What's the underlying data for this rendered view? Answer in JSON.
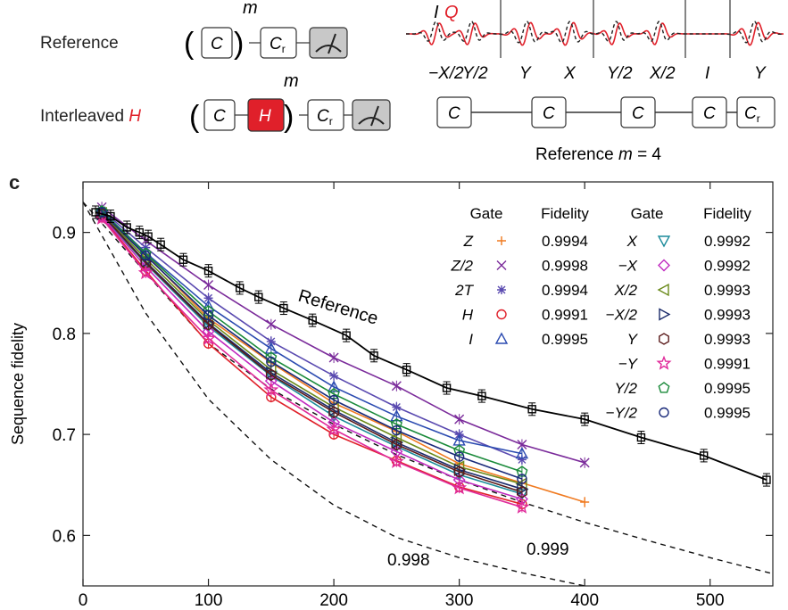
{
  "schematic": {
    "reference_label": "Reference",
    "interleaved_label": "Interleaved",
    "interleaved_gate": "H",
    "repeat_symbol": "m",
    "block_c": "C",
    "block_h": "H",
    "block_cr": "C",
    "block_cr_sub": "r",
    "iq_i": "I",
    "iq_q": "Q",
    "pulse_labels": [
      "−X/2",
      "Y/2",
      "Y",
      "X",
      "Y/2",
      "X/2",
      "I",
      "Y"
    ],
    "sequence_blocks": [
      "C",
      "C",
      "C",
      "C",
      "C"
    ],
    "sequence_caption_prefix": "Reference",
    "sequence_caption_var": "m",
    "sequence_caption_value": "= 4"
  },
  "panel_letter": "c",
  "chart_data": {
    "type": "line",
    "ylabel": "Sequence fidelity",
    "xlabel": "",
    "xlim": [
      0,
      550
    ],
    "ylim": [
      0.55,
      0.95
    ],
    "xticks": [
      0,
      100,
      200,
      300,
      400,
      500
    ],
    "yticks": [
      0.6,
      0.7,
      0.8,
      0.9
    ],
    "legend_placement": "top-right",
    "legend_headers": [
      "Gate",
      "Fidelity",
      "Gate",
      "Fidelity"
    ],
    "reference": {
      "name": "Reference",
      "color": "#000000",
      "x": [
        10,
        22,
        35,
        45,
        52,
        62,
        80,
        100,
        125,
        140,
        160,
        183,
        210,
        232,
        258,
        290,
        318,
        358,
        400,
        445,
        495,
        545
      ],
      "y": [
        0.92,
        0.916,
        0.905,
        0.9,
        0.896,
        0.888,
        0.873,
        0.862,
        0.845,
        0.836,
        0.825,
        0.813,
        0.798,
        0.778,
        0.764,
        0.746,
        0.738,
        0.725,
        0.715,
        0.697,
        0.679,
        0.655
      ]
    },
    "series": [
      {
        "name": "Z",
        "fidelity": "0.9994",
        "marker": "plus",
        "color": "#f07a20",
        "x": [
          15,
          50,
          100,
          150,
          200,
          250,
          300,
          350,
          400
        ],
        "y": [
          0.918,
          0.878,
          0.815,
          0.771,
          0.731,
          0.703,
          0.671,
          0.652,
          0.633
        ]
      },
      {
        "name": "Z/2",
        "fidelity": "0.9998",
        "marker": "x",
        "color": "#7a2a9a",
        "x": [
          15,
          50,
          100,
          150,
          200,
          250,
          300,
          350,
          400
        ],
        "y": [
          0.925,
          0.892,
          0.848,
          0.809,
          0.776,
          0.748,
          0.715,
          0.69,
          0.672
        ]
      },
      {
        "name": "2T",
        "fidelity": "0.9994",
        "marker": "star",
        "color": "#5a4ab0",
        "x": [
          15,
          50,
          100,
          150,
          200,
          250,
          300,
          350
        ],
        "y": [
          0.922,
          0.885,
          0.835,
          0.792,
          0.758,
          0.727,
          0.7,
          0.675
        ]
      },
      {
        "name": "H",
        "fidelity": "0.9991",
        "marker": "circle",
        "color": "#e0202a",
        "x": [
          15,
          50,
          100,
          150,
          200,
          250,
          300,
          350
        ],
        "y": [
          0.915,
          0.862,
          0.79,
          0.737,
          0.7,
          0.674,
          0.648,
          0.631
        ]
      },
      {
        "name": "I",
        "fidelity": "0.9995",
        "marker": "triangle-up",
        "color": "#2a4ab0",
        "x": [
          15,
          50,
          100,
          150,
          200,
          250,
          300,
          350
        ],
        "y": [
          0.921,
          0.88,
          0.827,
          0.785,
          0.747,
          0.718,
          0.694,
          0.681
        ]
      }
    ],
    "series_right": [
      {
        "name": "X",
        "fidelity": "0.9992",
        "marker": "triangle-down",
        "color": "#1a8a9a",
        "x": [
          15,
          50,
          100,
          150,
          200,
          250,
          300,
          350
        ],
        "y": [
          0.917,
          0.869,
          0.807,
          0.758,
          0.718,
          0.688,
          0.66,
          0.641
        ]
      },
      {
        "name": "−X",
        "fidelity": "0.9992",
        "marker": "diamond",
        "color": "#c02ac0",
        "x": [
          15,
          50,
          100,
          150,
          200,
          250,
          300,
          350
        ],
        "y": [
          0.916,
          0.866,
          0.802,
          0.753,
          0.712,
          0.683,
          0.655,
          0.636
        ]
      },
      {
        "name": "X/2",
        "fidelity": "0.9993",
        "marker": "triangle-left",
        "color": "#6a8a1a",
        "x": [
          15,
          50,
          100,
          150,
          200,
          250,
          300,
          350
        ],
        "y": [
          0.919,
          0.874,
          0.813,
          0.764,
          0.727,
          0.697,
          0.668,
          0.651
        ]
      },
      {
        "name": "−X/2",
        "fidelity": "0.9993",
        "marker": "triangle-right",
        "color": "#1a2a6a",
        "x": [
          15,
          50,
          100,
          150,
          200,
          250,
          300,
          350
        ],
        "y": [
          0.918,
          0.871,
          0.81,
          0.761,
          0.724,
          0.692,
          0.665,
          0.646
        ]
      },
      {
        "name": "Y",
        "fidelity": "0.9993",
        "marker": "hexagon",
        "color": "#5a1a1a",
        "x": [
          15,
          50,
          100,
          150,
          200,
          250,
          300,
          350
        ],
        "y": [
          0.918,
          0.87,
          0.809,
          0.759,
          0.722,
          0.69,
          0.663,
          0.643
        ]
      },
      {
        "name": "−Y",
        "fidelity": "0.9991",
        "marker": "star5",
        "color": "#e02a9a",
        "x": [
          15,
          50,
          100,
          150,
          200,
          250,
          300,
          350
        ],
        "y": [
          0.914,
          0.86,
          0.795,
          0.744,
          0.705,
          0.673,
          0.647,
          0.628
        ]
      },
      {
        "name": "Y/2",
        "fidelity": "0.9995",
        "marker": "pentagon",
        "color": "#1a8a3a",
        "x": [
          15,
          50,
          100,
          150,
          200,
          250,
          300,
          350
        ],
        "y": [
          0.921,
          0.879,
          0.822,
          0.776,
          0.74,
          0.71,
          0.684,
          0.663
        ]
      },
      {
        "name": "−Y/2",
        "fidelity": "0.9995",
        "marker": "circle",
        "color": "#1a2a7a",
        "x": [
          15,
          50,
          100,
          150,
          200,
          250,
          300,
          350
        ],
        "y": [
          0.92,
          0.877,
          0.818,
          0.772,
          0.734,
          0.704,
          0.678,
          0.656
        ]
      }
    ],
    "thresholds": [
      {
        "label": "0.999",
        "x": [
          0,
          50,
          100,
          150,
          200,
          250,
          300,
          350,
          400,
          450,
          500,
          550
        ],
        "y": [
          0.93,
          0.86,
          0.79,
          0.745,
          0.71,
          0.68,
          0.655,
          0.633,
          0.613,
          0.595,
          0.578,
          0.562
        ]
      },
      {
        "label": "0.998",
        "x": [
          0,
          50,
          100,
          150,
          200,
          250,
          300,
          350,
          400
        ],
        "y": [
          0.93,
          0.82,
          0.735,
          0.675,
          0.63,
          0.598,
          0.578,
          0.563,
          0.55
        ]
      }
    ]
  }
}
